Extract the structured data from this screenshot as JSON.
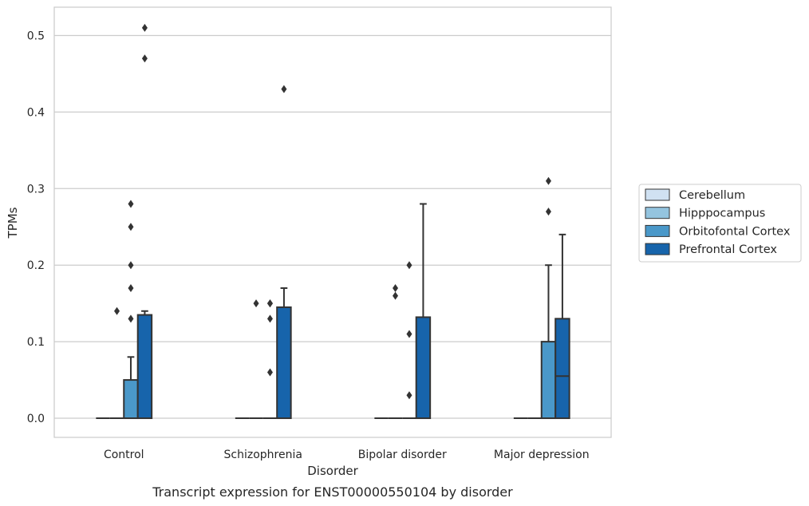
{
  "caption": "Transcript expression for ENST00000550104 by disorder",
  "chart_data": {
    "type": "box",
    "title": "",
    "xlabel": "Disorder",
    "ylabel": "TPMs",
    "ylim": [
      -0.025,
      0.537
    ],
    "yticks": [
      0.0,
      0.1,
      0.2,
      0.3,
      0.4,
      0.5
    ],
    "ytick_labels": [
      "0.0",
      "0.1",
      "0.2",
      "0.3",
      "0.4",
      "0.5"
    ],
    "grid": "horizontal",
    "legend_position": "right",
    "categories": [
      "Control",
      "Schizophrenia",
      "Bipolar disorder",
      "Major depression"
    ],
    "series": [
      {
        "name": "Cerebellum",
        "color": "#d0e1f2",
        "boxes": [
          {
            "q1": 0,
            "median": 0,
            "q3": 0,
            "whislo": 0,
            "whishi": 0,
            "fliers": []
          },
          {
            "q1": 0,
            "median": 0,
            "q3": 0,
            "whislo": 0,
            "whishi": 0,
            "fliers": []
          },
          {
            "q1": 0,
            "median": 0,
            "q3": 0,
            "whislo": 0,
            "whishi": 0,
            "fliers": []
          },
          {
            "q1": 0,
            "median": 0,
            "q3": 0,
            "whislo": 0,
            "whishi": 0,
            "fliers": []
          }
        ]
      },
      {
        "name": "Hipppocampus",
        "color": "#94c4df",
        "boxes": [
          {
            "q1": 0,
            "median": 0,
            "q3": 0,
            "whislo": 0,
            "whishi": 0,
            "fliers": [
              0.14
            ]
          },
          {
            "q1": 0,
            "median": 0,
            "q3": 0,
            "whislo": 0,
            "whishi": 0,
            "fliers": [
              0.15
            ]
          },
          {
            "q1": 0,
            "median": 0,
            "q3": 0,
            "whislo": 0,
            "whishi": 0,
            "fliers": [
              0.16,
              0.17
            ]
          },
          {
            "q1": 0,
            "median": 0,
            "q3": 0,
            "whislo": 0,
            "whishi": 0,
            "fliers": []
          }
        ]
      },
      {
        "name": "Orbitofontal Cortex",
        "color": "#4a98c9",
        "boxes": [
          {
            "q1": 0,
            "median": 0,
            "q3": 0.05,
            "whislo": 0,
            "whishi": 0.08,
            "fliers": [
              0.13,
              0.17,
              0.2,
              0.25,
              0.28
            ]
          },
          {
            "q1": 0,
            "median": 0,
            "q3": 0,
            "whislo": 0,
            "whishi": 0,
            "fliers": [
              0.06,
              0.13,
              0.15,
              0.15
            ]
          },
          {
            "q1": 0,
            "median": 0,
            "q3": 0,
            "whislo": 0,
            "whishi": 0,
            "fliers": [
              0.03,
              0.11,
              0.2
            ]
          },
          {
            "q1": 0,
            "median": 0,
            "q3": 0.1,
            "whislo": 0,
            "whishi": 0.2,
            "fliers": [
              0.27,
              0.31
            ]
          }
        ]
      },
      {
        "name": "Prefrontal Cortex",
        "color": "#1764ab",
        "boxes": [
          {
            "q1": 0,
            "median": 0,
            "q3": 0.135,
            "whislo": 0,
            "whishi": 0.14,
            "fliers": [
              0.47,
              0.51
            ]
          },
          {
            "q1": 0,
            "median": 0,
            "q3": 0.145,
            "whislo": 0,
            "whishi": 0.17,
            "fliers": [
              0.43
            ]
          },
          {
            "q1": 0,
            "median": 0,
            "q3": 0.132,
            "whislo": 0,
            "whishi": 0.28,
            "fliers": []
          },
          {
            "q1": 0,
            "median": 0.055,
            "q3": 0.13,
            "whislo": 0,
            "whishi": 0.24,
            "fliers": []
          }
        ]
      }
    ]
  }
}
